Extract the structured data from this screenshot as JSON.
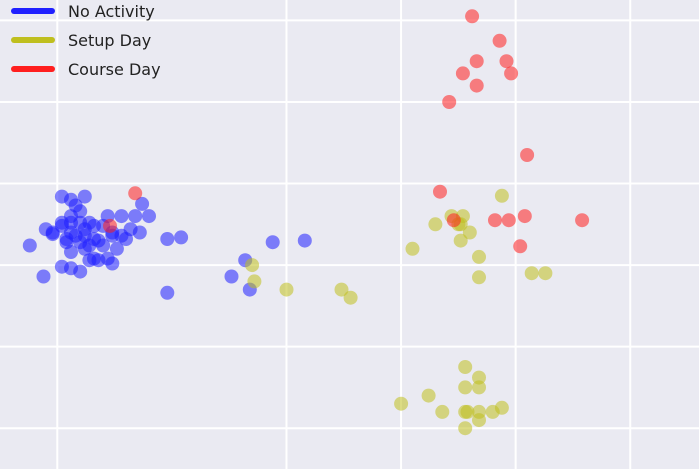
{
  "chart_data": {
    "type": "scatter",
    "background": "#eaeaf2",
    "grid": true,
    "grid_color": "#ffffff",
    "legend_placement": "top-left",
    "xlim": [
      -0.25,
      2.8
    ],
    "ylim": [
      -0.5,
      5.25
    ],
    "x_gridlines": [
      0,
      1,
      1.5,
      2,
      2.5
    ],
    "y_gridlines": [
      0,
      1,
      2,
      3,
      4,
      5
    ],
    "series": [
      {
        "name": "No Activity",
        "color": "#1f1fff",
        "points": [
          [
            -0.12,
            2.24
          ],
          [
            -0.05,
            2.44
          ],
          [
            0.04,
            2.28
          ],
          [
            0.08,
            2.73
          ],
          [
            0.1,
            2.66
          ],
          [
            0.02,
            2.48
          ],
          [
            0.06,
            2.52
          ],
          [
            0.1,
            2.52
          ],
          [
            0.14,
            2.52
          ],
          [
            -0.02,
            2.4
          ],
          [
            0.02,
            2.52
          ],
          [
            0.06,
            2.4
          ],
          [
            0.12,
            2.44
          ],
          [
            0.16,
            2.48
          ],
          [
            0.2,
            2.48
          ],
          [
            0.22,
            2.6
          ],
          [
            0.24,
            2.4
          ],
          [
            0.28,
            2.6
          ],
          [
            0.32,
            2.44
          ],
          [
            0.34,
            2.6
          ],
          [
            0.36,
            2.4
          ],
          [
            0.4,
            2.6
          ],
          [
            0.37,
            2.75
          ],
          [
            0.08,
            2.36
          ],
          [
            0.12,
            2.36
          ],
          [
            0.16,
            2.32
          ],
          [
            0.2,
            2.24
          ],
          [
            0.24,
            2.36
          ],
          [
            0.28,
            2.36
          ],
          [
            0.1,
            2.28
          ],
          [
            0.14,
            2.24
          ],
          [
            0.18,
            2.3
          ],
          [
            0.04,
            2.32
          ],
          [
            -0.02,
            2.38
          ],
          [
            0.06,
            2.16
          ],
          [
            0.12,
            2.2
          ],
          [
            0.16,
            2.08
          ],
          [
            0.22,
            2.08
          ],
          [
            0.26,
            2.2
          ],
          [
            0.3,
            2.32
          ],
          [
            0.06,
            1.96
          ],
          [
            0.1,
            1.92
          ],
          [
            0.14,
            2.06
          ],
          [
            0.18,
            2.06
          ],
          [
            0.24,
            2.02
          ],
          [
            0.02,
            1.98
          ],
          [
            -0.06,
            1.86
          ],
          [
            0.48,
            2.32
          ],
          [
            0.54,
            2.34
          ],
          [
            0.48,
            1.66
          ],
          [
            0.76,
            1.86
          ],
          [
            0.82,
            2.06
          ],
          [
            0.84,
            1.7
          ],
          [
            0.94,
            2.28
          ],
          [
            1.08,
            2.3
          ],
          [
            0.02,
            2.84
          ],
          [
            0.06,
            2.8
          ],
          [
            0.12,
            2.84
          ],
          [
            0.06,
            2.6
          ]
        ]
      },
      {
        "name": "Setup Day",
        "color": "#bfbf1f",
        "points": [
          [
            0.85,
            2.0
          ],
          [
            0.86,
            1.8
          ],
          [
            1.0,
            1.7
          ],
          [
            1.24,
            1.7
          ],
          [
            1.28,
            1.6
          ],
          [
            1.55,
            2.2
          ],
          [
            1.65,
            2.5
          ],
          [
            1.75,
            2.5
          ],
          [
            1.76,
            2.3
          ],
          [
            1.77,
            2.6
          ],
          [
            1.8,
            2.4
          ],
          [
            1.84,
            2.1
          ],
          [
            1.84,
            1.85
          ],
          [
            1.76,
            2.5
          ],
          [
            1.72,
            2.6
          ],
          [
            2.07,
            1.9
          ],
          [
            2.13,
            1.9
          ],
          [
            1.94,
            2.85
          ],
          [
            1.62,
            0.4
          ],
          [
            1.68,
            0.2
          ],
          [
            1.79,
            0.2
          ],
          [
            1.84,
            0.2
          ],
          [
            1.94,
            0.25
          ],
          [
            1.78,
            0.0
          ],
          [
            1.78,
            0.75
          ],
          [
            1.84,
            0.5
          ],
          [
            1.84,
            0.1
          ],
          [
            1.9,
            0.2
          ],
          [
            1.78,
            0.5
          ],
          [
            1.78,
            0.2
          ],
          [
            1.84,
            0.62
          ],
          [
            1.5,
            0.3
          ]
        ]
      },
      {
        "name": "Course Day",
        "color": "#ff1f1f",
        "points": [
          [
            1.81,
            5.05
          ],
          [
            1.93,
            4.75
          ],
          [
            1.96,
            4.5
          ],
          [
            1.77,
            4.35
          ],
          [
            1.83,
            4.5
          ],
          [
            1.98,
            4.35
          ],
          [
            1.83,
            4.2
          ],
          [
            1.71,
            4.0
          ],
          [
            2.05,
            3.35
          ],
          [
            1.67,
            2.9
          ],
          [
            1.73,
            2.55
          ],
          [
            1.91,
            2.55
          ],
          [
            1.97,
            2.55
          ],
          [
            2.04,
            2.6
          ],
          [
            2.29,
            2.55
          ],
          [
            2.02,
            2.23
          ],
          [
            0.34,
            2.88
          ],
          [
            0.23,
            2.48
          ]
        ]
      }
    ]
  }
}
